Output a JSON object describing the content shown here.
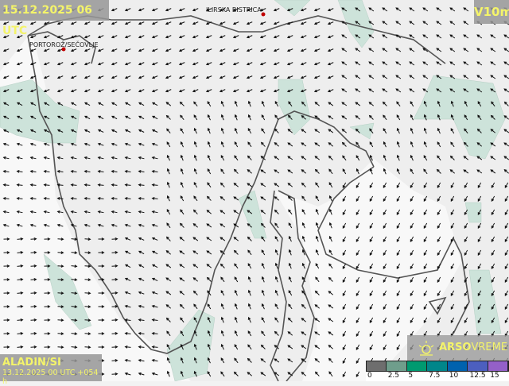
{
  "header": {
    "valid_time": "15.12.2025 06 UTC",
    "variable": "V10m"
  },
  "footer": {
    "model": "ALADIN/SI",
    "run": "13.12.2025 00 UTC +054 h"
  },
  "cities": [
    {
      "name": "ILIRSKA BISTRICA"
    },
    {
      "name": "PORTOROŽ/SEČOVLJE"
    }
  ],
  "brand": {
    "name_bold": "ARSO",
    "name_rest": "VREME",
    "logo_icon": "sun-icon"
  },
  "legend": {
    "ticks": [
      "0",
      "2.5",
      "5",
      "7.5",
      "10",
      "12.5",
      "15"
    ],
    "colors": [
      "#6e6e6e",
      "#6f9e8c",
      "#009a70",
      "#00868a",
      "#0062ae",
      "#4c5fbf",
      "#9460c8"
    ]
  },
  "colors": {
    "land": "#ececec",
    "wind_shade": "#cde3da",
    "coast": "#555555",
    "label": "#f4f46a"
  }
}
